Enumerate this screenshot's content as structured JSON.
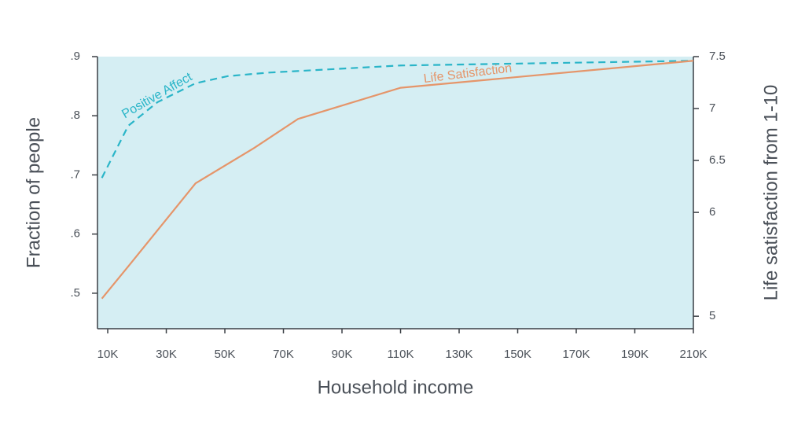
{
  "chart_data": {
    "type": "line",
    "x_label": "Household income",
    "y_label": "Fraction of people",
    "y2_label": "Life satisfaction from 1-10",
    "xlim": [
      6500,
      210000
    ],
    "xticks": [
      {
        "value": 10000,
        "label": "10K"
      },
      {
        "value": 30000,
        "label": "30K"
      },
      {
        "value": 50000,
        "label": "50K"
      },
      {
        "value": 70000,
        "label": "70K"
      },
      {
        "value": 90000,
        "label": "90K"
      },
      {
        "value": 110000,
        "label": "110K"
      },
      {
        "value": 130000,
        "label": "130K"
      },
      {
        "value": 150000,
        "label": "150K"
      },
      {
        "value": 170000,
        "label": "170K"
      },
      {
        "value": 190000,
        "label": "190K"
      },
      {
        "value": 210000,
        "label": "210K"
      }
    ],
    "ylim": [
      0.44,
      0.9
    ],
    "yticks": [
      {
        "value": 0.5,
        "label": ".5"
      },
      {
        "value": 0.6,
        "label": ".6"
      },
      {
        "value": 0.7,
        "label": ".7"
      },
      {
        "value": 0.8,
        "label": ".8"
      },
      {
        "value": 0.9,
        "label": ".9"
      }
    ],
    "y2lim": [
      4.88,
      7.5
    ],
    "y2ticks": [
      5,
      6,
      6.5,
      7,
      7.5
    ],
    "grid": false,
    "plot_background": "#d5eef3",
    "series": [
      {
        "name": "Positive Affect",
        "color": "#2ab5c8",
        "dashed": true,
        "x": [
          8000,
          17000,
          27000,
          40000,
          51000,
          65000,
          110000,
          210000
        ],
        "values": [
          0.695,
          0.783,
          0.823,
          0.855,
          0.867,
          0.873,
          0.885,
          0.893
        ]
      },
      {
        "name": "Life Satisfaction",
        "color": "#e5956a",
        "dashed": false,
        "axis": "y2",
        "x": [
          8000,
          17000,
          40000,
          60000,
          75000,
          110000,
          210000
        ],
        "values": [
          5.17,
          5.48,
          6.28,
          6.62,
          6.9,
          7.2,
          7.46
        ]
      }
    ]
  }
}
